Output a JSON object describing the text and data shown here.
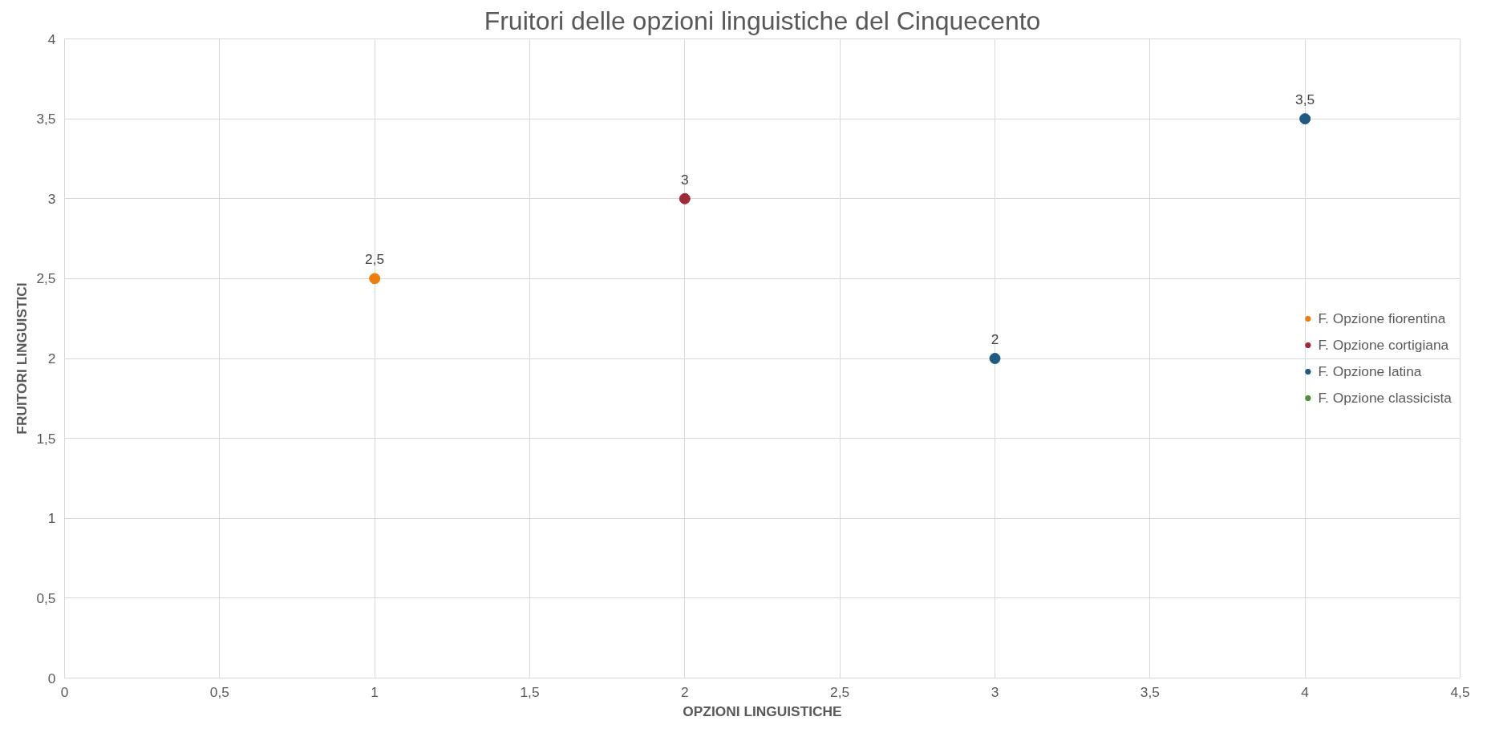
{
  "chart_data": {
    "type": "scatter",
    "title": "Fruitori delle opzioni linguistiche del Cinquecento",
    "xlabel": "OPZIONI LINGUISTICHE",
    "ylabel": "FRUITORI LINGUISTICI",
    "series": [
      {
        "name": "F. Opzione fiorentina",
        "color": "#ed7d0f",
        "x": [
          1
        ],
        "values": [
          2.5
        ],
        "value_labels": [
          "2,5"
        ]
      },
      {
        "name": "F. Opzione cortigiana",
        "color": "#9e2a3a",
        "x": [
          2
        ],
        "values": [
          3
        ],
        "value_labels": [
          "3"
        ]
      },
      {
        "name": "F. Opzione latina",
        "color": "#1f5a80",
        "x": [
          3,
          4
        ],
        "values": [
          2,
          3.5
        ],
        "value_labels": [
          "2",
          "3,5"
        ]
      },
      {
        "name": "F. Opzione classicista",
        "color": "#548b3f"
      }
    ],
    "xlim": [
      0,
      4.5
    ],
    "ylim": [
      0,
      4
    ],
    "xticks": [
      0,
      {
        "value": 0.5,
        "label": "0,5"
      },
      1,
      {
        "value": 1.5,
        "label": "1,5"
      },
      2,
      {
        "value": 2.5,
        "label": "2,5"
      },
      3,
      {
        "value": 3.5,
        "label": "3,5"
      },
      4,
      {
        "value": 4.5,
        "label": "4,5"
      }
    ],
    "yticks": [
      0,
      {
        "value": 0.5,
        "label": "0,5"
      },
      1,
      {
        "value": 1.5,
        "label": "1,5"
      },
      2,
      {
        "value": 2.5,
        "label": "2,5"
      },
      3,
      {
        "value": 3.5,
        "label": "3,5"
      },
      4
    ],
    "grid": true,
    "legend": "right",
    "marker": "circle"
  }
}
